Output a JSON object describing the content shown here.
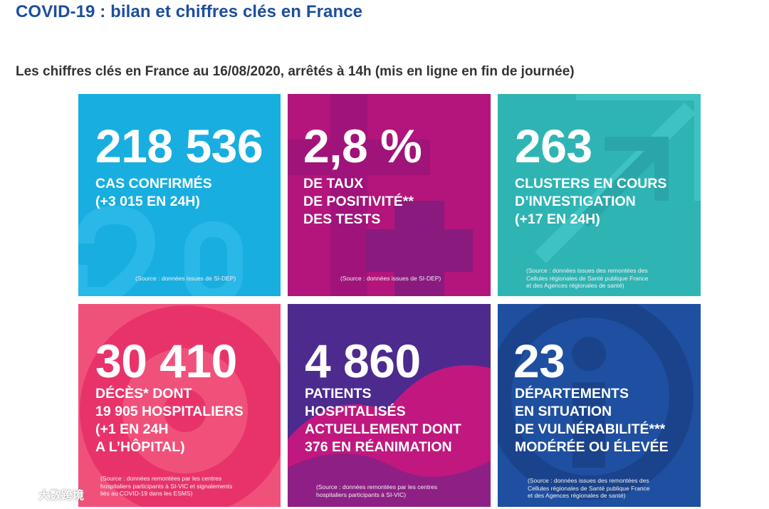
{
  "page": {
    "title": "COVID-19 : bilan et chiffres clés en France",
    "subtitle": "Les chiffres clés en France au 16/08/2020, arrêtés à 14h (mis en ligne en fin de journée)"
  },
  "colors": {
    "title": "#1d4e9e",
    "tile_cases": "#18aee0",
    "tile_positivity": "#b3157c",
    "tile_clusters": "#2fb4b4",
    "tile_deaths": "#f0517b",
    "tile_hospital": "#4d2a8e",
    "tile_departments": "#1f4fa0"
  },
  "tiles": [
    {
      "value": "218 536",
      "lines": [
        "CAS CONFIRMÉS",
        "(+3 015 EN 24H)"
      ],
      "source": [
        "(Source : données issues de SI-DEP)"
      ]
    },
    {
      "value": "2,8 %",
      "lines": [
        "DE TAUX",
        "DE POSITIVITÉ**",
        "DES TESTS"
      ],
      "source": [
        "(Source : données issues de SI-DEP)"
      ]
    },
    {
      "value": "263",
      "lines": [
        "CLUSTERS EN COURS",
        "D’INVESTIGATION",
        "(+17 EN 24H)"
      ],
      "source": [
        "(Source : données issues des remontées des",
        "Cellules régionales de Santé publique France",
        "et des Agences régionales de santé)"
      ]
    },
    {
      "value": "30 410",
      "lines": [
        "DÉCÈS* DONT",
        "19 905 HOSPITALIERS",
        "(+1 EN 24H",
        "A L’HÔPITAL)"
      ],
      "source": [
        "(Source : données remontées par les centres",
        "hospitaliers participants à SI-VIC et signalements",
        "liés au COVID-19 dans les ESMS)"
      ]
    },
    {
      "value": "4 860",
      "lines": [
        "PATIENTS",
        "HOSPITALISÉS",
        "ACTUELLEMENT DONT",
        "376 EN RÉANIMATION"
      ],
      "source": [
        "(Source : données remontées par les centres",
        "hospitaliers participants à SI-VIC)"
      ]
    },
    {
      "value": "23",
      "lines": [
        "DÉPARTEMENTS",
        "EN SITUATION",
        "DE VULNÉRABILITÉ***",
        "MODÉRÉE OU ÉLEVÉE"
      ],
      "source": [
        "(Source : données issues des remontées des",
        "Cellules régionales de Santé publique France",
        "et des Agences régionales de santé)"
      ]
    }
  ],
  "watermark": {
    "text": "大数跨境",
    "icon": "dashuju-logo-icon"
  }
}
